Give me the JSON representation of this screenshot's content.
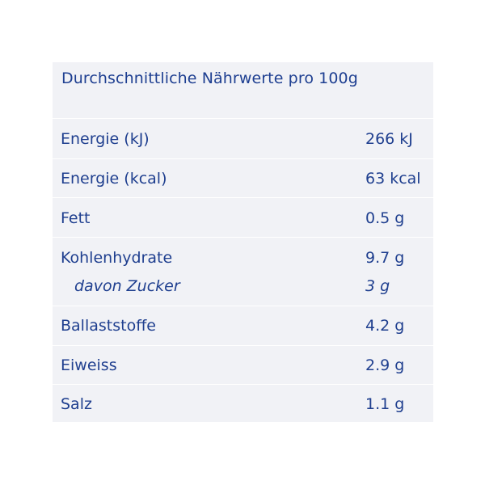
{
  "table": {
    "title": "Durchschnittliche Nährwerte pro 100g",
    "rows": [
      {
        "label": "Energie (kJ)",
        "value": "266 kJ"
      },
      {
        "label": "Energie (kcal)",
        "value": "63 kcal"
      },
      {
        "label": "Fett",
        "value": "0.5 g"
      },
      {
        "label": "Kohlenhydrate",
        "value": "9.7 g",
        "sub_label": "davon Zucker",
        "sub_value": "3 g"
      },
      {
        "label": "Ballaststoffe",
        "value": "4.2 g"
      },
      {
        "label": "Eiweiss",
        "value": "2.9 g"
      },
      {
        "label": "Salz",
        "value": "1.1 g"
      }
    ]
  },
  "colors": {
    "text": "#1f3f8f",
    "panel_background": "#f1f2f6",
    "divider": "#ffffff"
  }
}
